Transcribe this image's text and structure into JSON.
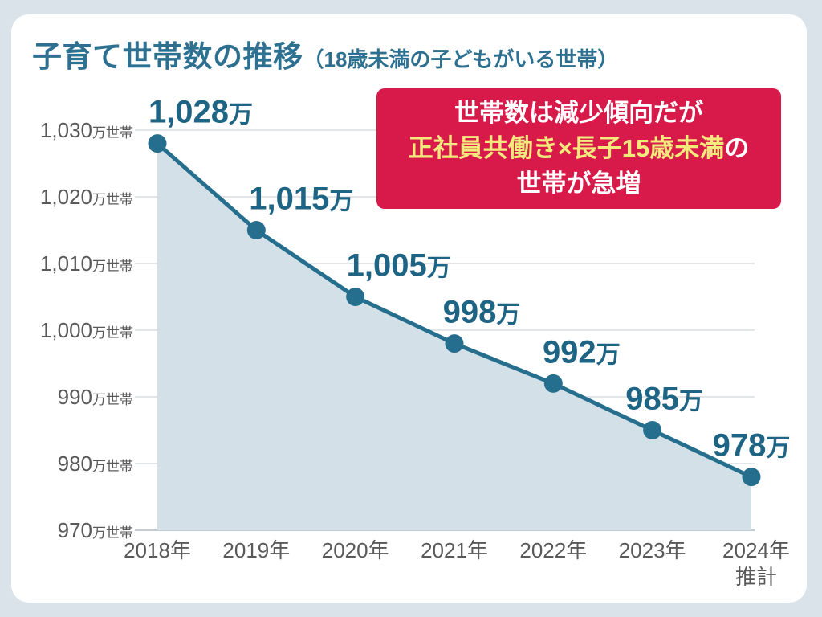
{
  "page": {
    "title_main": "子育て世帯数の推移",
    "title_sub": "（18歳未満の子どもがいる世帯）",
    "background_color": "#d9e3e9",
    "card_color": "#ffffff",
    "title_color": "#2d7090"
  },
  "callout": {
    "line1": "世帯数は減少傾向だが",
    "line2_highlight": "正社員共働き×長子15歳未満",
    "line2_tail": "の",
    "line3": "世帯が急増",
    "bg_color": "#d81a4a",
    "text_color": "#ffffff",
    "highlight_color": "#f3e97d"
  },
  "chart_data": {
    "type": "line",
    "title": "子育て世帯数の推移（18歳未満の子どもがいる世帯）",
    "categories": [
      "2018年",
      "2019年",
      "2020年",
      "2021年",
      "2022年",
      "2023年",
      "2024年\n推計"
    ],
    "values": [
      1028,
      1015,
      1005,
      998,
      992,
      985,
      978
    ],
    "point_labels": [
      {
        "num": "1,028",
        "suffix": "万"
      },
      {
        "num": "1,015",
        "suffix": "万"
      },
      {
        "num": "1,005",
        "suffix": "万"
      },
      {
        "num": "998",
        "suffix": "万"
      },
      {
        "num": "992",
        "suffix": "万"
      },
      {
        "num": "985",
        "suffix": "万"
      },
      {
        "num": "978",
        "suffix": "万"
      }
    ],
    "y_ticks": [
      {
        "value": 1030,
        "num": "1,030",
        "suffix": "万世帯"
      },
      {
        "value": 1020,
        "num": "1,020",
        "suffix": "万世帯"
      },
      {
        "value": 1010,
        "num": "1,010",
        "suffix": "万世帯"
      },
      {
        "value": 1000,
        "num": "1,000",
        "suffix": "万世帯"
      },
      {
        "value": 990,
        "num": "990",
        "suffix": "万世帯"
      },
      {
        "value": 980,
        "num": "980",
        "suffix": "万世帯"
      },
      {
        "value": 970,
        "num": "970",
        "suffix": "万世帯"
      }
    ],
    "ylim": [
      970,
      1030
    ],
    "unit": "万世帯",
    "grid": true,
    "area_fill": true,
    "legend": "none",
    "colors": {
      "line": "#256e8e",
      "point": "#256e8e",
      "area": "#d3e0e7",
      "label": "#1e6484",
      "axis_text": "#595959",
      "grid": "#e3e6e8",
      "grid_bottom": "#c3ccd1"
    }
  }
}
